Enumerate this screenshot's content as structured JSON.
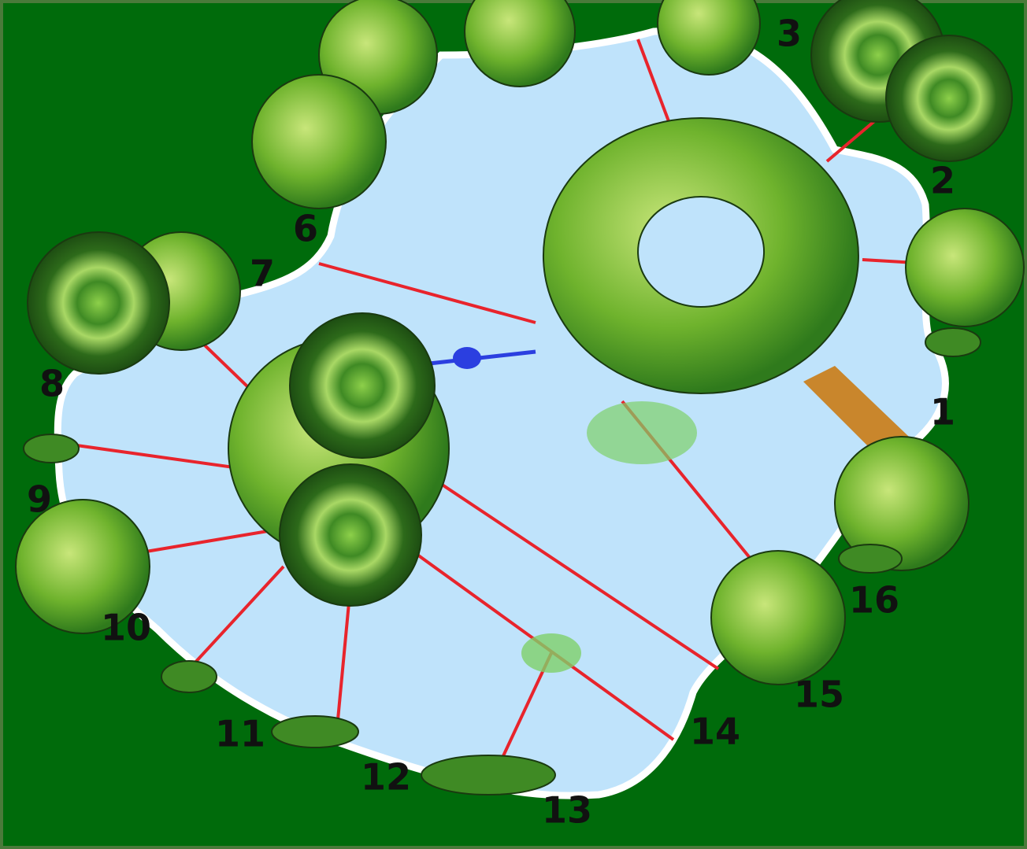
{
  "labels": [
    "1",
    "2",
    "3",
    "6",
    "7",
    "8",
    "9",
    "10",
    "11",
    "12",
    "13",
    "14",
    "15",
    "16"
  ]
}
